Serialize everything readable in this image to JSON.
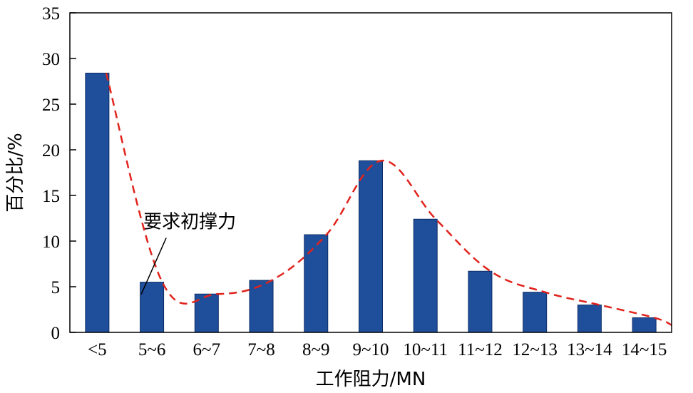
{
  "chart_data": {
    "type": "bar",
    "title": "",
    "xlabel": "工作阻力/MN",
    "ylabel": "百分比/%",
    "ylim": [
      0,
      35
    ],
    "yticks": [
      0,
      5,
      10,
      15,
      20,
      25,
      30,
      35
    ],
    "categories": [
      "<5",
      "5~6",
      "6~7",
      "7~8",
      "8~9",
      "9~10",
      "10~11",
      "11~12",
      "12~13",
      "13~14",
      "14~15"
    ],
    "values": [
      28.4,
      5.5,
      4.2,
      5.7,
      10.7,
      18.8,
      12.4,
      6.7,
      4.4,
      3.0,
      1.6
    ],
    "bar_color": "#1f4e9b",
    "trend_line": {
      "style": "dashed",
      "color": "#e0231c",
      "x_end_category_offset": 0.6,
      "values": [
        28.4,
        5.5,
        4.2,
        5.7,
        10.7,
        18.8,
        12.4,
        6.7,
        4.4,
        3.0,
        1.6
      ],
      "end_value": 0.8
    },
    "annotation": {
      "text": "要求初撑力",
      "category": "5~6"
    },
    "grid": false,
    "legend": "none"
  }
}
